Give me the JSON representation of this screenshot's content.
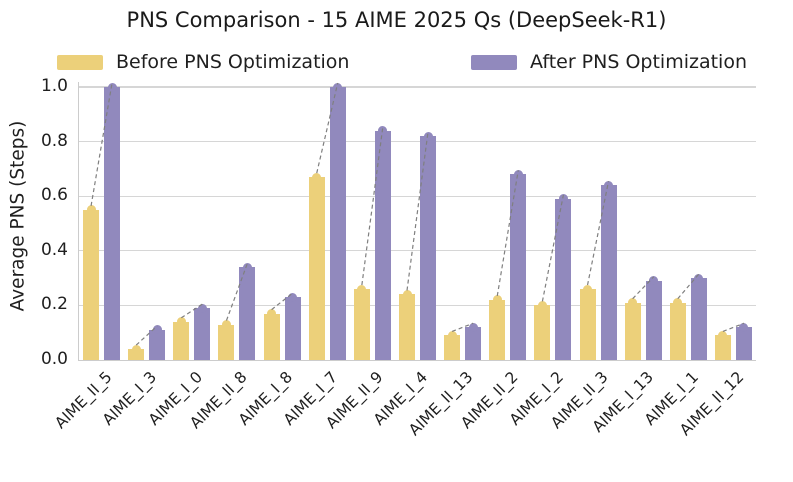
{
  "chart_data": {
    "type": "bar",
    "title": "PNS Comparison - 15 AIME 2025 Qs (DeepSeek-R1)",
    "ylabel": "Average PNS (Steps)",
    "xlabel": "",
    "categories": [
      "AIME_II_5",
      "AIME_I_3",
      "AIME_I_0",
      "AIME_II_8",
      "AIME_I_8",
      "AIME_I_7",
      "AIME_II_9",
      "AIME_I_4",
      "AIME_II_13",
      "AIME_II_2",
      "AIME_I_2",
      "AIME_II_3",
      "AIME_I_13",
      "AIME_I_1",
      "AIME_II_12"
    ],
    "series": [
      {
        "name": "Before PNS Optimization",
        "color": "#ecd07a",
        "values": [
          0.55,
          0.04,
          0.14,
          0.13,
          0.17,
          0.67,
          0.26,
          0.24,
          0.09,
          0.22,
          0.2,
          0.26,
          0.21,
          0.21,
          0.09
        ]
      },
      {
        "name": "After PNS Optimization",
        "color": "#9189bd",
        "values": [
          1.0,
          0.11,
          0.19,
          0.34,
          0.23,
          1.0,
          0.84,
          0.82,
          0.12,
          0.68,
          0.59,
          0.64,
          0.29,
          0.3,
          0.12
        ]
      }
    ],
    "ylim": [
      0.0,
      1.0
    ],
    "yticks": [
      0.0,
      0.2,
      0.4,
      0.6,
      0.8,
      1.0
    ],
    "ytick_labels": [
      "0.0",
      "0.2",
      "0.4",
      "0.6",
      "0.8",
      "1.0"
    ],
    "grid": true,
    "legend_position": "top",
    "styling": {
      "gridline_color": "#d6d6d6",
      "spine_color": "#cccccc",
      "connector_color": "#7f7f7f",
      "text_color": "#1f1f1f",
      "bar_top_markers": true,
      "pair_connectors": "dashed",
      "xtick_rotation_deg": 45
    }
  }
}
